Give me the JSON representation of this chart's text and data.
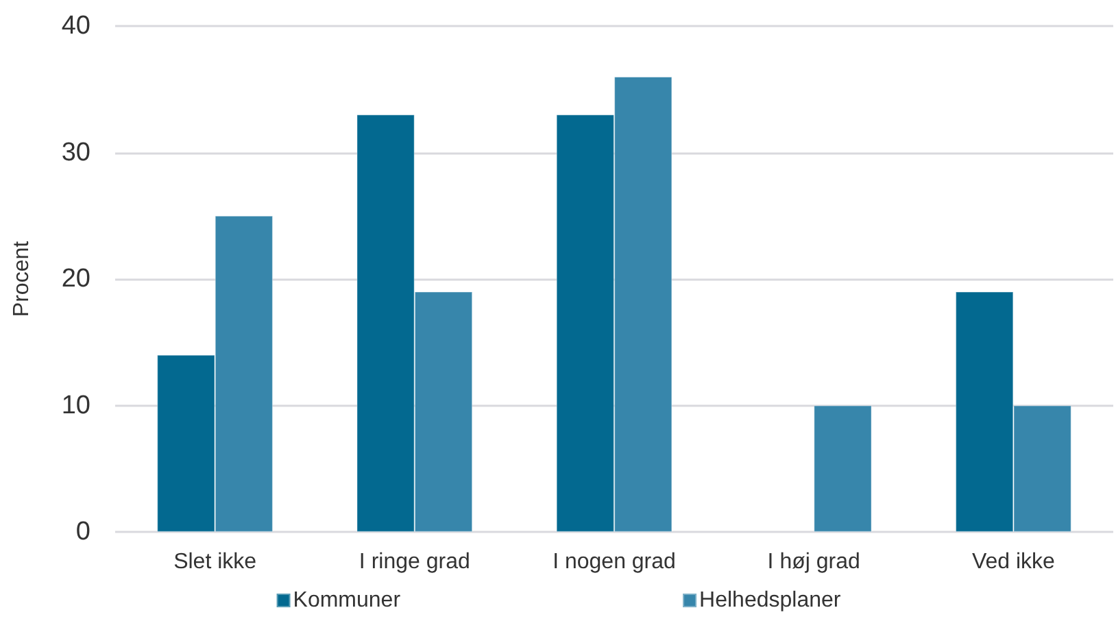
{
  "chart_data": {
    "type": "bar",
    "ylabel": "Procent",
    "categories": [
      "Slet ikke",
      "I ringe grad",
      "I nogen grad",
      "I høj grad",
      "Ved ikke"
    ],
    "series": [
      {
        "name": "Kommuner",
        "color": "#036990",
        "values": [
          14,
          33,
          33,
          null,
          19
        ]
      },
      {
        "name": "Helhedsplaner",
        "color": "#3786ab",
        "values": [
          25,
          19,
          36,
          10,
          10
        ]
      }
    ],
    "ylim": [
      0,
      40
    ],
    "yticks": [
      0,
      10,
      20,
      30,
      40
    ],
    "grid": "y",
    "legend": "bottom"
  }
}
